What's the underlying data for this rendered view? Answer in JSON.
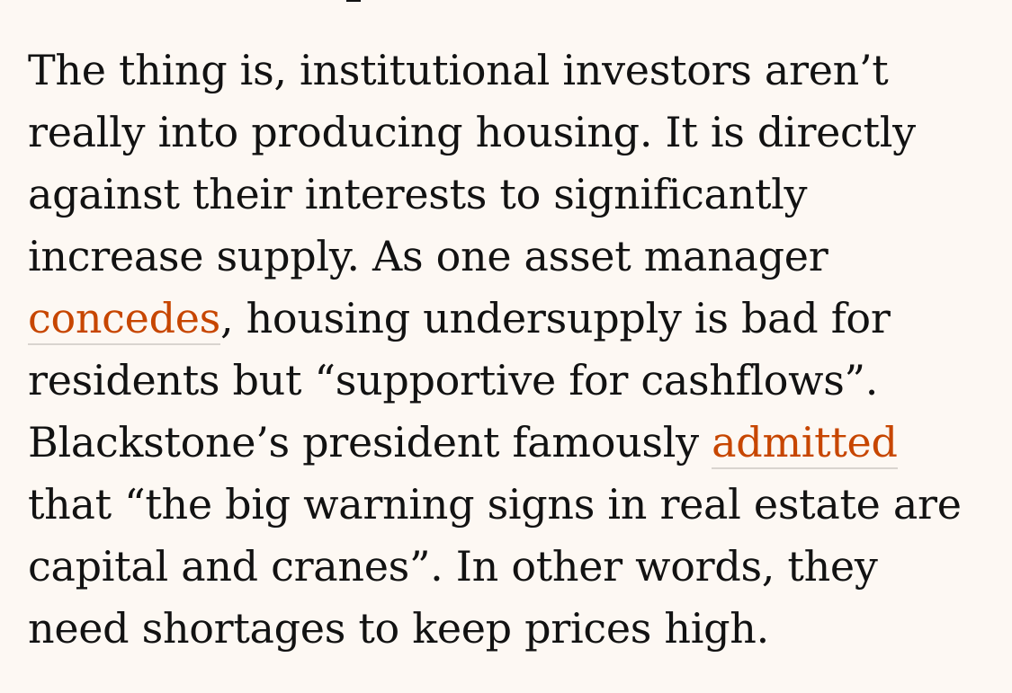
{
  "article": {
    "lines": [
      "The thing is, institutional investors aren’t",
      "really into producing housing. It is directly",
      "against their interests to significantly",
      "increase supply. As one asset manager"
    ],
    "line5": {
      "link": "concedes",
      "after": ", housing undersupply is bad for"
    },
    "line6": "residents but “supportive for cashflows”.",
    "line7": {
      "before": "Blackstone’s president famously ",
      "link": "admitted"
    },
    "line8": "that “the big warning signs in real estate are",
    "line9": "capital and cranes”. In other words, they",
    "line10": "need shortages to keep prices high."
  },
  "colors": {
    "background": "#fdf8f3",
    "text": "#121212",
    "link": "#c74600"
  }
}
